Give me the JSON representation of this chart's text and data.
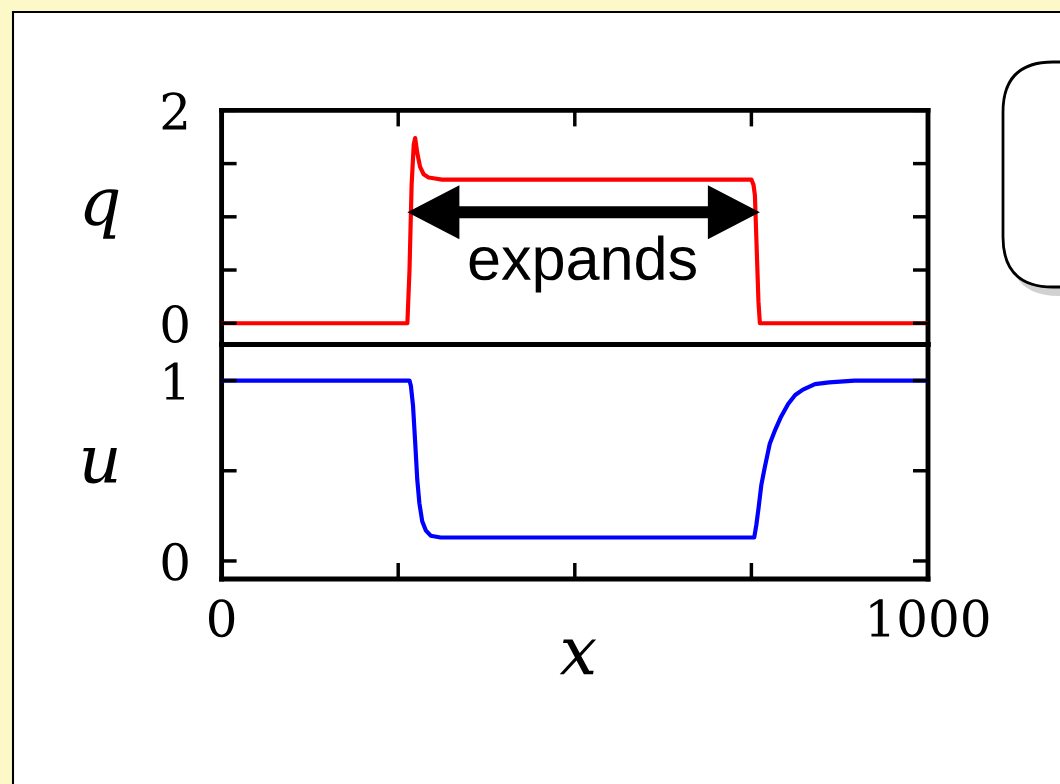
{
  "chart_data": [
    {
      "type": "line",
      "ylabel": "q",
      "x": [
        0,
        263,
        266,
        269,
        272,
        274,
        277,
        281,
        286,
        293,
        302,
        312,
        750,
        753,
        755,
        758,
        760,
        762,
        1000
      ],
      "series": [
        {
          "color": "#ff0000",
          "values": [
            0,
            0,
            0.5,
            1.3,
            1.68,
            1.74,
            1.6,
            1.47,
            1.4,
            1.37,
            1.36,
            1.35,
            1.35,
            1.3,
            1.2,
            0.6,
            0.2,
            0,
            0
          ]
        }
      ],
      "xlim": [
        0,
        1000
      ],
      "ylim": [
        -0.2,
        2
      ],
      "xticks": [
        0,
        {
          "value": 250,
          "label": null
        },
        {
          "value": 500,
          "label": null
        },
        {
          "value": 750,
          "label": null
        },
        1000
      ],
      "yticks": [
        0,
        {
          "value": 0.5,
          "label": null
        },
        {
          "value": 1,
          "label": null
        },
        {
          "value": 1.5,
          "label": null
        },
        2
      ],
      "tick_labels": "y",
      "annotations": [
        "expands"
      ]
    },
    {
      "type": "line",
      "xlabel": "x",
      "ylabel": "u",
      "x": [
        0,
        266,
        268,
        271,
        274,
        277,
        280,
        284,
        289,
        296,
        310,
        754,
        757,
        760,
        764,
        769,
        776,
        784,
        792,
        802,
        812,
        823,
        840,
        860,
        896,
        1000
      ],
      "series": [
        {
          "color": "#0000ff",
          "values": [
            1,
            1,
            0.97,
            0.86,
            0.66,
            0.45,
            0.32,
            0.22,
            0.17,
            0.14,
            0.13,
            0.13,
            0.2,
            0.29,
            0.42,
            0.52,
            0.65,
            0.73,
            0.8,
            0.87,
            0.92,
            0.95,
            0.98,
            0.99,
            1,
            1
          ]
        }
      ],
      "xlim": [
        0,
        1000
      ],
      "ylim": [
        -0.1,
        1.2
      ],
      "xticks": [
        0,
        {
          "value": 250,
          "label": null
        },
        {
          "value": 500,
          "label": null
        },
        {
          "value": 750,
          "label": null
        },
        1000
      ],
      "yticks": [
        0,
        {
          "value": 0.5,
          "label": null
        },
        1
      ]
    }
  ]
}
